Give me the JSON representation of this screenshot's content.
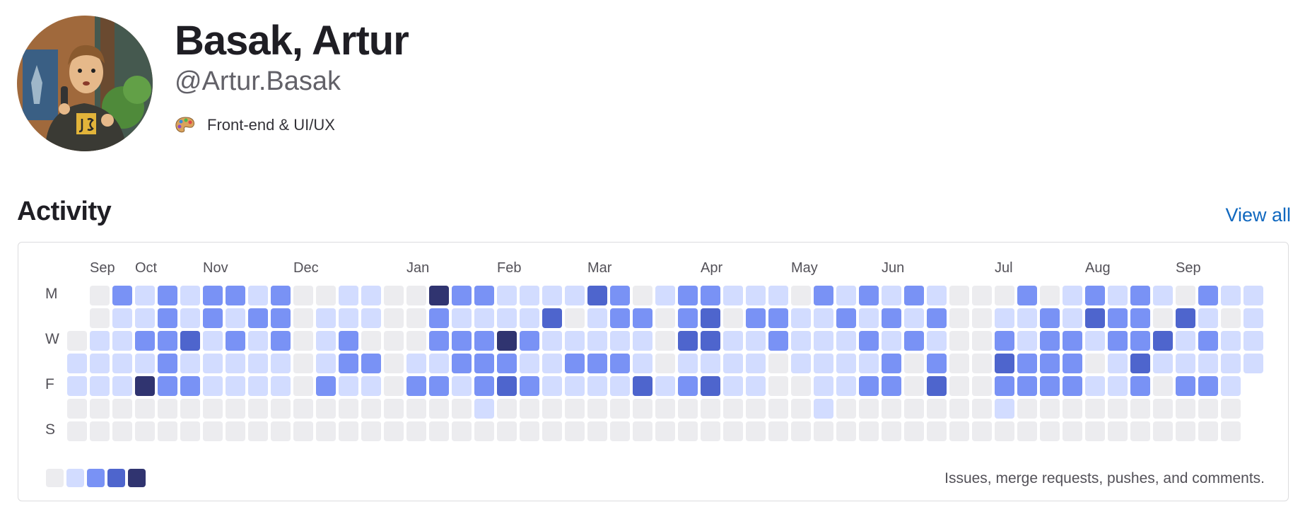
{
  "profile": {
    "name": "Basak, Artur",
    "username": "@Artur.Basak",
    "role_icon": "artist-palette-icon",
    "role": "Front-end & UI/UX"
  },
  "activity": {
    "heading": "Activity",
    "view_all": "View all",
    "caption": "Issues, merge requests, pushes, and comments.",
    "day_labels": [
      "M",
      "W",
      "F",
      "S"
    ],
    "months": [
      {
        "label": "Sep",
        "week": 1
      },
      {
        "label": "Oct",
        "week": 3
      },
      {
        "label": "Nov",
        "week": 6
      },
      {
        "label": "Dec",
        "week": 10
      },
      {
        "label": "Jan",
        "week": 15
      },
      {
        "label": "Feb",
        "week": 19
      },
      {
        "label": "Mar",
        "week": 23
      },
      {
        "label": "Apr",
        "week": 28
      },
      {
        "label": "May",
        "week": 32
      },
      {
        "label": "Jun",
        "week": 36
      },
      {
        "label": "Jul",
        "week": 41
      },
      {
        "label": "Aug",
        "week": 45
      },
      {
        "label": "Sep",
        "week": 49
      }
    ],
    "level_colors": [
      "#ececef",
      "#d2dcff",
      "#7992f5",
      "#4e65cd",
      "#303470"
    ],
    "weeks": [
      [
        null,
        null,
        0,
        1,
        1,
        0,
        0
      ],
      [
        0,
        0,
        1,
        1,
        1,
        0,
        0
      ],
      [
        2,
        1,
        1,
        1,
        1,
        0,
        0
      ],
      [
        1,
        1,
        2,
        1,
        4,
        0,
        0
      ],
      [
        2,
        2,
        2,
        2,
        2,
        0,
        0
      ],
      [
        1,
        1,
        3,
        1,
        2,
        0,
        0
      ],
      [
        2,
        2,
        1,
        1,
        1,
        0,
        0
      ],
      [
        2,
        1,
        2,
        1,
        1,
        0,
        0
      ],
      [
        1,
        2,
        1,
        1,
        1,
        0,
        0
      ],
      [
        2,
        2,
        2,
        1,
        1,
        0,
        0
      ],
      [
        0,
        0,
        0,
        0,
        0,
        0,
        0
      ],
      [
        0,
        1,
        1,
        1,
        2,
        0,
        0
      ],
      [
        1,
        1,
        2,
        2,
        1,
        0,
        0
      ],
      [
        1,
        1,
        0,
        2,
        1,
        0,
        0
      ],
      [
        0,
        0,
        0,
        0,
        0,
        0,
        0
      ],
      [
        0,
        0,
        0,
        1,
        2,
        0,
        0
      ],
      [
        4,
        2,
        2,
        1,
        2,
        0,
        0
      ],
      [
        2,
        1,
        2,
        2,
        1,
        0,
        0
      ],
      [
        2,
        1,
        2,
        2,
        2,
        1,
        0
      ],
      [
        1,
        1,
        4,
        2,
        3,
        0,
        0
      ],
      [
        1,
        1,
        2,
        1,
        2,
        0,
        0
      ],
      [
        1,
        3,
        1,
        1,
        1,
        0,
        0
      ],
      [
        1,
        0,
        1,
        2,
        1,
        0,
        0
      ],
      [
        3,
        1,
        1,
        2,
        1,
        0,
        0
      ],
      [
        2,
        2,
        1,
        2,
        1,
        0,
        0
      ],
      [
        0,
        2,
        1,
        1,
        3,
        0,
        0
      ],
      [
        1,
        0,
        0,
        0,
        1,
        0,
        0
      ],
      [
        2,
        2,
        3,
        1,
        2,
        0,
        0
      ],
      [
        2,
        3,
        3,
        1,
        3,
        0,
        0
      ],
      [
        1,
        0,
        1,
        1,
        1,
        0,
        0
      ],
      [
        1,
        2,
        1,
        1,
        1,
        0,
        0
      ],
      [
        1,
        2,
        2,
        0,
        0,
        0,
        0
      ],
      [
        0,
        1,
        1,
        1,
        0,
        0,
        0
      ],
      [
        2,
        1,
        1,
        1,
        1,
        1,
        0
      ],
      [
        1,
        2,
        1,
        1,
        1,
        0,
        0
      ],
      [
        2,
        1,
        2,
        1,
        2,
        0,
        0
      ],
      [
        1,
        2,
        1,
        2,
        2,
        0,
        0
      ],
      [
        2,
        1,
        2,
        0,
        0,
        0,
        0
      ],
      [
        1,
        2,
        1,
        2,
        3,
        0,
        0
      ],
      [
        0,
        0,
        0,
        0,
        0,
        0,
        0
      ],
      [
        0,
        0,
        0,
        0,
        0,
        0,
        0
      ],
      [
        0,
        1,
        2,
        3,
        2,
        1,
        0
      ],
      [
        2,
        1,
        1,
        2,
        2,
        0,
        0
      ],
      [
        0,
        2,
        2,
        2,
        2,
        0,
        0
      ],
      [
        1,
        1,
        2,
        2,
        2,
        0,
        0
      ],
      [
        2,
        3,
        1,
        0,
        1,
        0,
        0
      ],
      [
        1,
        2,
        2,
        1,
        1,
        0,
        0
      ],
      [
        2,
        2,
        2,
        3,
        2,
        0,
        0
      ],
      [
        1,
        0,
        3,
        1,
        0,
        0,
        0
      ],
      [
        0,
        3,
        1,
        1,
        2,
        0,
        0
      ],
      [
        2,
        1,
        2,
        1,
        2,
        0,
        0
      ],
      [
        1,
        0,
        1,
        1,
        1,
        0,
        0
      ],
      [
        1,
        1,
        1,
        1,
        null,
        null,
        null
      ]
    ]
  }
}
